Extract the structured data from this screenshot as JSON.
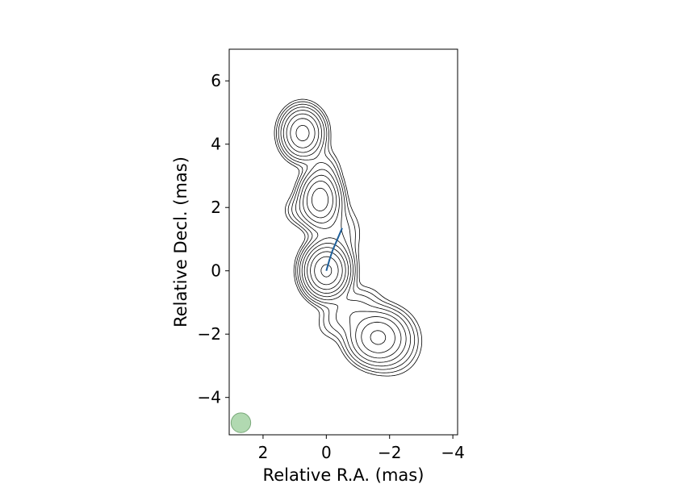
{
  "chart_data": {
    "type": "contour",
    "xlabel": "Relative R.A. (mas)",
    "ylabel": "Relative Decl. (mas)",
    "xlim": [
      3.07,
      -4.15
    ],
    "ylim": [
      -5.18,
      7.0
    ],
    "x_ticks": [
      {
        "value": 2,
        "label": "2"
      },
      {
        "value": 0,
        "label": "0"
      },
      {
        "value": -2,
        "label": "−2"
      },
      {
        "value": -4,
        "label": "−4"
      }
    ],
    "y_ticks": [
      {
        "value": 6,
        "label": "6"
      },
      {
        "value": 4,
        "label": "4"
      },
      {
        "value": 2,
        "label": "2"
      },
      {
        "value": 0,
        "label": "0"
      },
      {
        "value": -2,
        "label": "−2"
      },
      {
        "value": -4,
        "label": "−4"
      }
    ],
    "grid": false,
    "contour_color": "#000000",
    "contour_levels": 10,
    "components": [
      {
        "x": 0.0,
        "y": 0.0,
        "peak": 1.0,
        "sx": 0.36,
        "sy": 0.42,
        "angle": 0
      },
      {
        "x": 0.2,
        "y": 2.25,
        "peak": 0.5,
        "sx": 0.33,
        "sy": 0.45,
        "angle": 0
      },
      {
        "x": 0.75,
        "y": 4.35,
        "peak": 0.45,
        "sx": 0.35,
        "sy": 0.42,
        "angle": 0
      },
      {
        "x": -1.6,
        "y": -2.1,
        "peak": 0.4,
        "sx": 0.48,
        "sy": 0.45,
        "angle": 0
      },
      {
        "x": -0.7,
        "y": -1.3,
        "peak": 0.08,
        "sx": 0.6,
        "sy": 0.35,
        "angle": -35
      },
      {
        "x": -0.35,
        "y": 1.2,
        "peak": 0.06,
        "sx": 0.45,
        "sy": 0.55,
        "angle": 0
      },
      {
        "x": 0.9,
        "y": 1.9,
        "peak": 0.04,
        "sx": 0.3,
        "sy": 0.3,
        "angle": 0
      },
      {
        "x": -2.2,
        "y": -2.3,
        "peak": 0.05,
        "sx": 0.5,
        "sy": 0.6,
        "angle": 0
      },
      {
        "x": 0.05,
        "y": 3.2,
        "peak": 0.05,
        "sx": 0.3,
        "sy": 0.4,
        "angle": 0
      }
    ],
    "track": {
      "color": "#1f5f99",
      "points": [
        [
          0.0,
          0.0
        ],
        [
          -0.1,
          0.35
        ],
        [
          -0.2,
          0.65
        ],
        [
          -0.33,
          0.95
        ],
        [
          -0.5,
          1.35
        ]
      ]
    },
    "beam": {
      "x": 2.7,
      "y": -4.8,
      "diameter_mas": 0.62,
      "color": "#a8d5a8"
    }
  }
}
